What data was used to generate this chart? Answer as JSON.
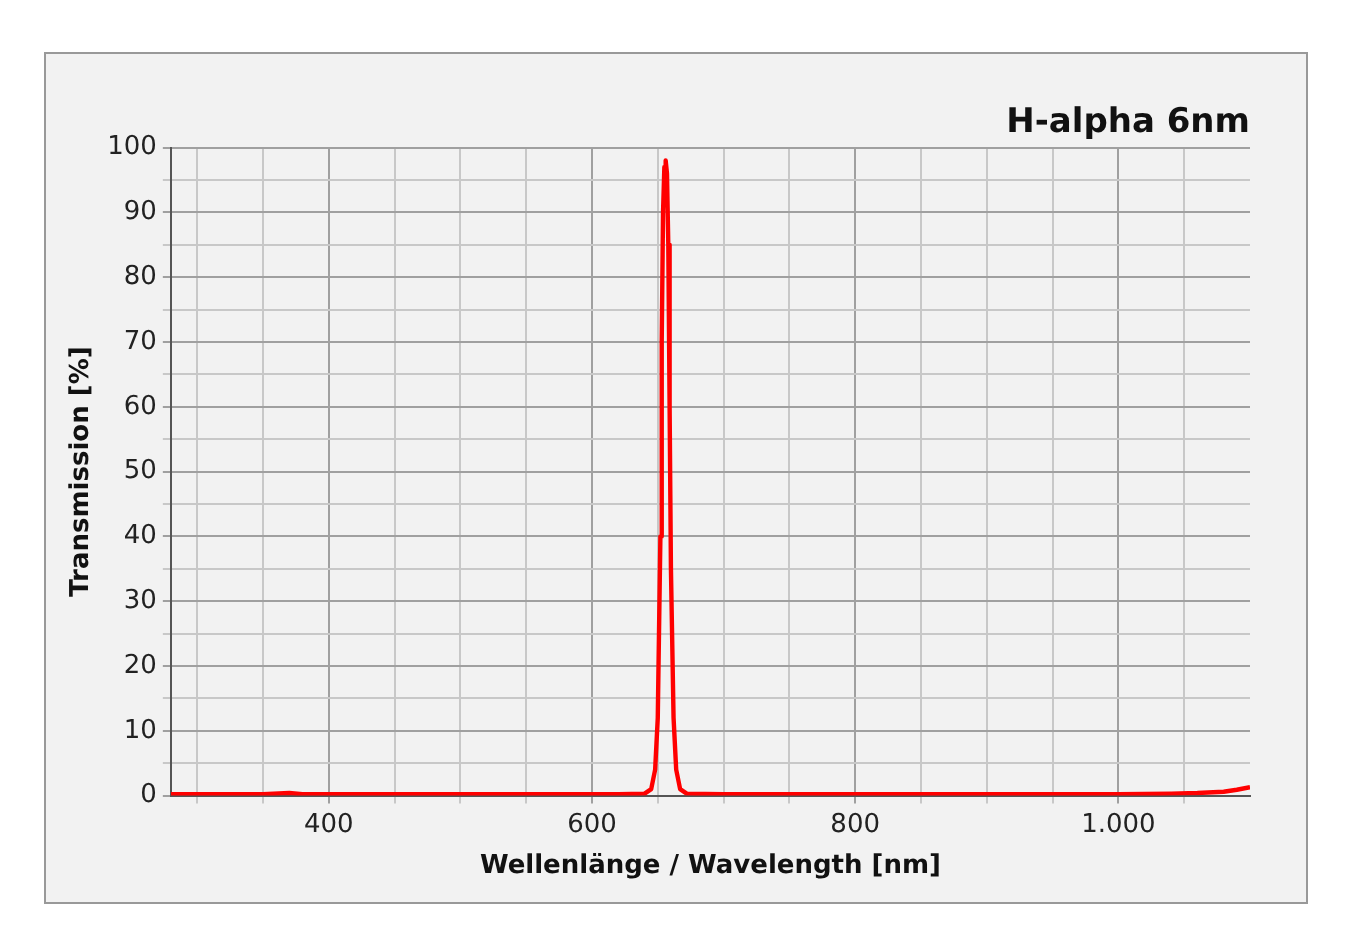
{
  "chart_data": {
    "type": "line",
    "title": "H-alpha 6nm",
    "xlabel": "Wellenlänge / Wavelength [nm]",
    "ylabel": "Transmission [%]",
    "x": [
      280,
      350,
      370,
      380,
      450,
      550,
      620,
      640,
      645,
      648,
      650,
      652,
      653,
      654,
      655,
      656,
      657,
      658,
      659,
      660,
      662,
      664,
      667,
      672,
      700,
      800,
      900,
      1000,
      1040,
      1060,
      1080,
      1090,
      1100
    ],
    "series": [
      {
        "color": "#ff0000",
        "values": [
          0.2,
          0.2,
          0.4,
          0.2,
          0.2,
          0.2,
          0.2,
          0.3,
          1,
          4,
          12,
          40,
          70,
          90,
          97,
          98,
          96,
          85,
          60,
          35,
          12,
          4,
          1,
          0.3,
          0.2,
          0.2,
          0.2,
          0.2,
          0.3,
          0.4,
          0.6,
          0.9,
          1.3
        ]
      }
    ],
    "xlim": [
      280,
      1100
    ],
    "xticks": [
      {
        "value": 300,
        "label": null
      },
      {
        "value": 350,
        "label": null
      },
      400,
      {
        "value": 450,
        "label": null
      },
      {
        "value": 500,
        "label": null
      },
      {
        "value": 550,
        "label": null
      },
      600,
      {
        "value": 650,
        "label": null
      },
      {
        "value": 700,
        "label": null
      },
      {
        "value": 750,
        "label": null
      },
      800,
      {
        "value": 850,
        "label": null
      },
      {
        "value": 900,
        "label": null
      },
      {
        "value": 950,
        "label": null
      },
      {
        "value": 1000,
        "label": "1.000"
      },
      {
        "value": 1050,
        "label": null
      }
    ],
    "ylim": [
      0,
      100
    ],
    "yticks": [
      0,
      {
        "value": 5,
        "label": null
      },
      10,
      {
        "value": 15,
        "label": null
      },
      20,
      {
        "value": 25,
        "label": null
      },
      30,
      {
        "value": 35,
        "label": null
      },
      40,
      {
        "value": 45,
        "label": null
      },
      50,
      {
        "value": 55,
        "label": null
      },
      60,
      {
        "value": 65,
        "label": null
      },
      70,
      {
        "value": 75,
        "label": null
      },
      80,
      {
        "value": 85,
        "label": null
      },
      90,
      {
        "value": 95,
        "label": null
      },
      100
    ],
    "grid": true,
    "legend": false,
    "marker": "none",
    "line_style": "solid"
  }
}
